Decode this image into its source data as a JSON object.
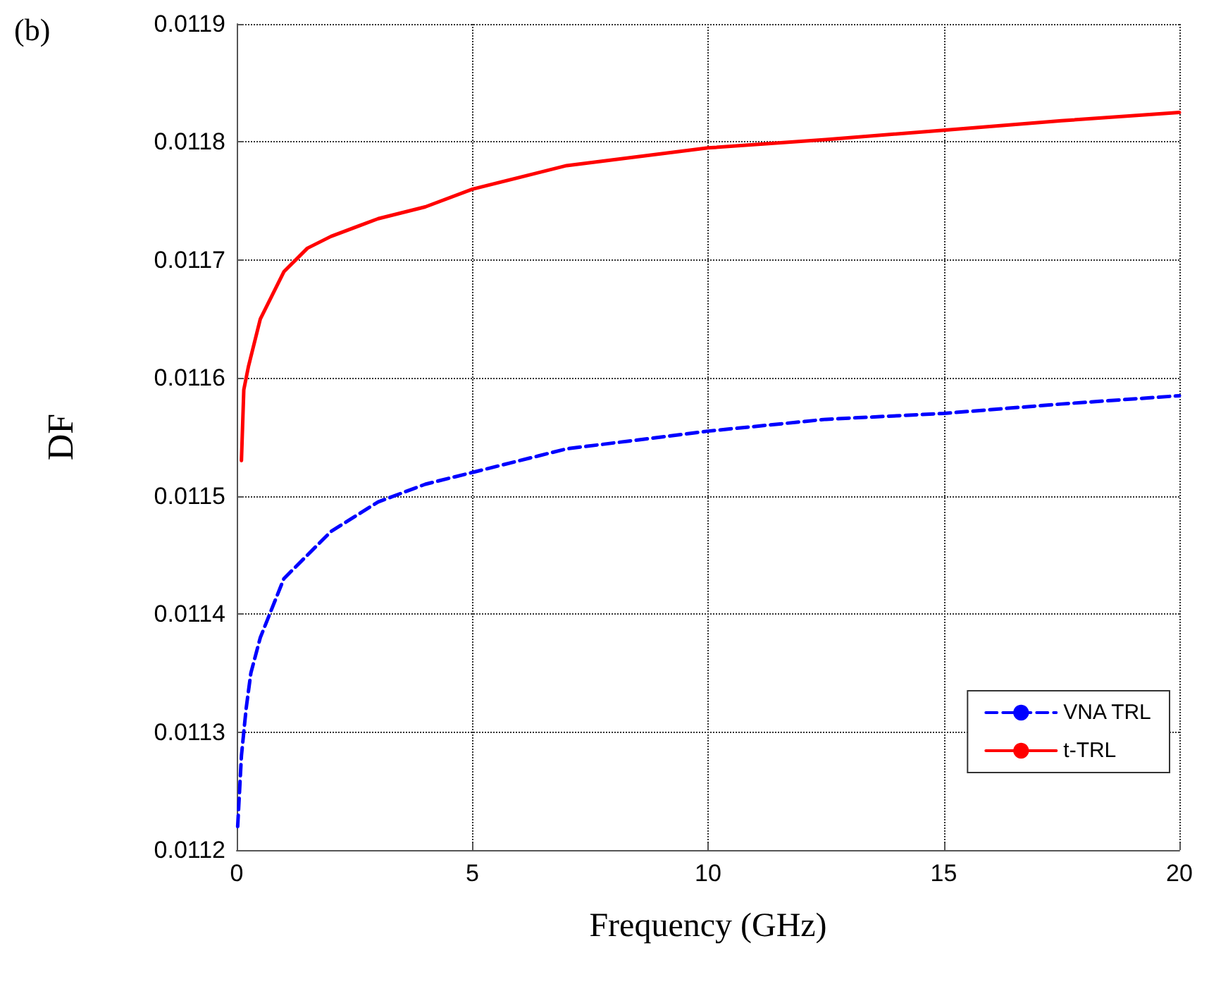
{
  "chart_data": {
    "type": "line",
    "xlabel": "Frequency (GHz)",
    "ylabel": "DF",
    "annotations": [
      "(b)"
    ],
    "xlim": [
      0,
      20
    ],
    "xticks": [
      0,
      5,
      10,
      15,
      20
    ],
    "ylim": [
      0.0112,
      0.0119
    ],
    "yticks": [
      0.0112,
      0.0113,
      0.0114,
      0.0115,
      0.0116,
      0.0117,
      0.0118,
      0.0119
    ],
    "grid": true,
    "legend": "bottom right",
    "series": [
      {
        "name": "VNA TRL",
        "color": "#0000ff",
        "line_style": "dashed",
        "x": [
          0.02,
          0.1,
          0.2,
          0.3,
          0.5,
          0.7,
          1,
          1.5,
          2,
          3,
          4,
          5,
          7,
          10,
          12.5,
          15,
          17.5,
          20
        ],
        "values": [
          0.01122,
          0.01128,
          0.01132,
          0.01135,
          0.01138,
          0.0114,
          0.01143,
          0.01145,
          0.01147,
          0.011495,
          0.01151,
          0.01152,
          0.01154,
          0.011555,
          0.011565,
          0.01157,
          0.011578,
          0.011585
        ]
      },
      {
        "name": "t-TRL",
        "color": "#ff0000",
        "line_style": "solid",
        "x": [
          0.1,
          0.15,
          0.25,
          0.5,
          0.75,
          1,
          1.5,
          2,
          3,
          4,
          5,
          7,
          10,
          12.5,
          15,
          17.5,
          20
        ],
        "values": [
          0.01153,
          0.01159,
          0.01161,
          0.01165,
          0.01167,
          0.01169,
          0.01171,
          0.01172,
          0.011735,
          0.011745,
          0.01176,
          0.01178,
          0.011795,
          0.011802,
          0.01181,
          0.011818,
          0.011825
        ]
      }
    ]
  }
}
